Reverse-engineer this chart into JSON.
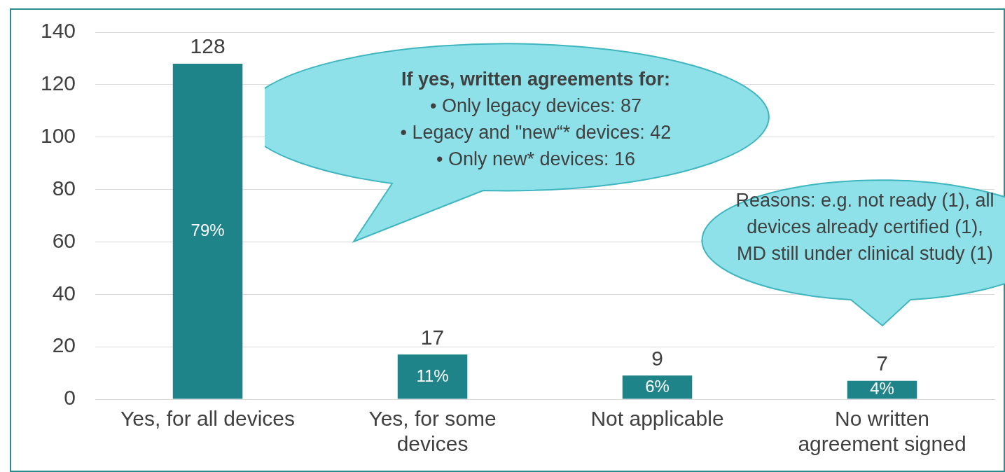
{
  "chart_data": {
    "type": "bar",
    "categories": [
      "Yes, for all devices",
      "Yes, for some devices",
      "Not applicable",
      "No written agreement signed"
    ],
    "values": [
      128,
      17,
      9,
      7
    ],
    "color": "#1e8489",
    "ylim": [
      0,
      140
    ],
    "yticks": [
      0,
      20,
      40,
      60,
      80,
      100,
      120,
      140
    ],
    "grid": "y",
    "legend": false,
    "data_labels": true,
    "annotations": [
      "79%",
      "11%",
      "6%",
      "4%",
      "If yes, written agreements for:\n•  Only legacy devices: 87\n•  Legacy and \"new“* devices: 42\n•  Only new* devices: 16",
      "Reasons: e.g. not ready (1), all devices already certified (1), MD still under clinical study (1)"
    ]
  }
}
